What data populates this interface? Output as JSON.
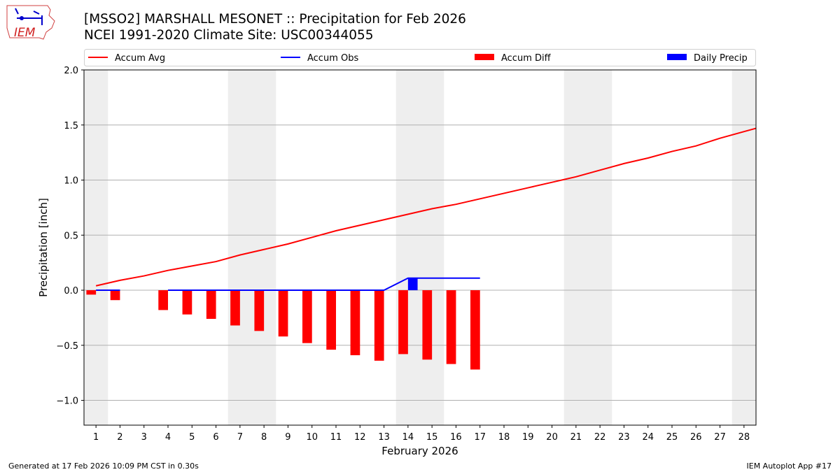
{
  "header": {
    "title_line1": "[MSSO2] MARSHALL MESONET :: Precipitation for Feb 2026",
    "title_line2": "NCEI 1991-2020 Climate Site: USC00344055",
    "logo_text": "IEM"
  },
  "footer": {
    "left": "Generated at 17 Feb 2026 10:09 PM CST in 0.30s",
    "right": "IEM Autoplot App #17"
  },
  "chart_data": {
    "type": "bar",
    "xlabel": "February 2026",
    "ylabel": "Precipitation [inch]",
    "xlim": [
      0.5,
      28.5
    ],
    "ylim": [
      -1.225,
      2.0
    ],
    "yticks": [
      -1.0,
      -0.5,
      0.0,
      0.5,
      1.0,
      1.5,
      2.0
    ],
    "ytick_labels": [
      "−1.0",
      "−0.5",
      "0.0",
      "0.5",
      "1.0",
      "1.5",
      "2.0"
    ],
    "xticks": [
      1,
      2,
      3,
      4,
      5,
      6,
      7,
      8,
      9,
      10,
      11,
      12,
      13,
      14,
      15,
      16,
      17,
      18,
      19,
      20,
      21,
      22,
      23,
      24,
      25,
      26,
      27,
      28
    ],
    "grid": "horizontal",
    "legend_position": "top",
    "weekend_days": [
      1,
      7,
      8,
      14,
      15,
      21,
      22,
      28
    ],
    "colors": {
      "accum_avg": "#ff0000",
      "accum_obs": "#0000ff",
      "accum_diff": "#ff0000",
      "daily_precip": "#0000ff",
      "weekend": "#eeeeee"
    },
    "series": [
      {
        "name": "Accum Avg",
        "kind": "line",
        "x": [
          1,
          2,
          3,
          4,
          5,
          6,
          7,
          8,
          9,
          10,
          11,
          12,
          13,
          14,
          15,
          16,
          17,
          18,
          19,
          20,
          21,
          22,
          23,
          24,
          25,
          26,
          27,
          28,
          29
        ],
        "values": [
          0.04,
          0.09,
          0.13,
          0.18,
          0.22,
          0.26,
          0.32,
          0.37,
          0.42,
          0.48,
          0.54,
          0.59,
          0.64,
          0.69,
          0.74,
          0.78,
          0.83,
          0.88,
          0.93,
          0.98,
          1.03,
          1.09,
          1.15,
          1.2,
          1.26,
          1.31,
          1.38,
          1.44,
          1.5
        ]
      },
      {
        "name": "Accum Obs",
        "kind": "line",
        "x": [
          1,
          2,
          3,
          4,
          5,
          6,
          7,
          8,
          9,
          10,
          11,
          12,
          13,
          14,
          15,
          16,
          17
        ],
        "values": [
          0,
          0,
          null,
          0,
          0,
          0,
          0,
          0,
          0,
          0,
          0,
          0,
          0,
          0.11,
          0.11,
          0.11,
          0.11
        ]
      },
      {
        "name": "Accum Diff",
        "kind": "bar",
        "x": [
          1,
          2,
          4,
          5,
          6,
          7,
          8,
          9,
          10,
          11,
          12,
          13,
          14,
          15,
          16,
          17
        ],
        "values": [
          -0.04,
          -0.09,
          -0.18,
          -0.22,
          -0.26,
          -0.32,
          -0.37,
          -0.42,
          -0.48,
          -0.54,
          -0.59,
          -0.64,
          -0.58,
          -0.63,
          -0.67,
          -0.72
        ]
      },
      {
        "name": "Daily Precip",
        "kind": "bar",
        "x": [
          14
        ],
        "values": [
          0.11
        ]
      }
    ]
  }
}
